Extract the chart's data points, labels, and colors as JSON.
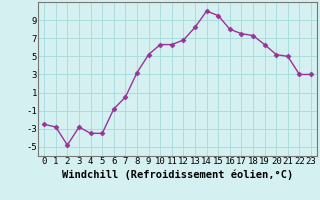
{
  "x": [
    0,
    1,
    2,
    3,
    4,
    5,
    6,
    7,
    8,
    9,
    10,
    11,
    12,
    13,
    14,
    15,
    16,
    17,
    18,
    19,
    20,
    21,
    22,
    23
  ],
  "y": [
    -2.5,
    -2.8,
    -4.8,
    -2.8,
    -3.5,
    -3.5,
    -0.8,
    0.5,
    3.2,
    5.2,
    6.3,
    6.3,
    6.8,
    8.2,
    10.0,
    9.5,
    8.0,
    7.5,
    7.3,
    6.3,
    5.2,
    5.0,
    3.0,
    3.0
  ],
  "xlabel": "Windchill (Refroidissement éolien,°C)",
  "line_color": "#993399",
  "marker": "D",
  "marker_size": 2.5,
  "bg_color": "#d4f0f0",
  "grid_color": "#aadddd",
  "xlim_min": -0.5,
  "xlim_max": 23.5,
  "ylim_min": -6,
  "ylim_max": 11,
  "yticks": [
    -5,
    -3,
    -1,
    1,
    3,
    5,
    7,
    9
  ],
  "xticks": [
    0,
    1,
    2,
    3,
    4,
    5,
    6,
    7,
    8,
    9,
    10,
    11,
    12,
    13,
    14,
    15,
    16,
    17,
    18,
    19,
    20,
    21,
    22,
    23
  ],
  "xtick_labels": [
    "0",
    "1",
    "2",
    "3",
    "4",
    "5",
    "6",
    "7",
    "8",
    "9",
    "10",
    "11",
    "12",
    "13",
    "14",
    "15",
    "16",
    "17",
    "18",
    "19",
    "20",
    "21",
    "22",
    "23"
  ],
  "tick_font_size": 6.5,
  "xlabel_font_size": 7.5,
  "line_width": 1.0
}
